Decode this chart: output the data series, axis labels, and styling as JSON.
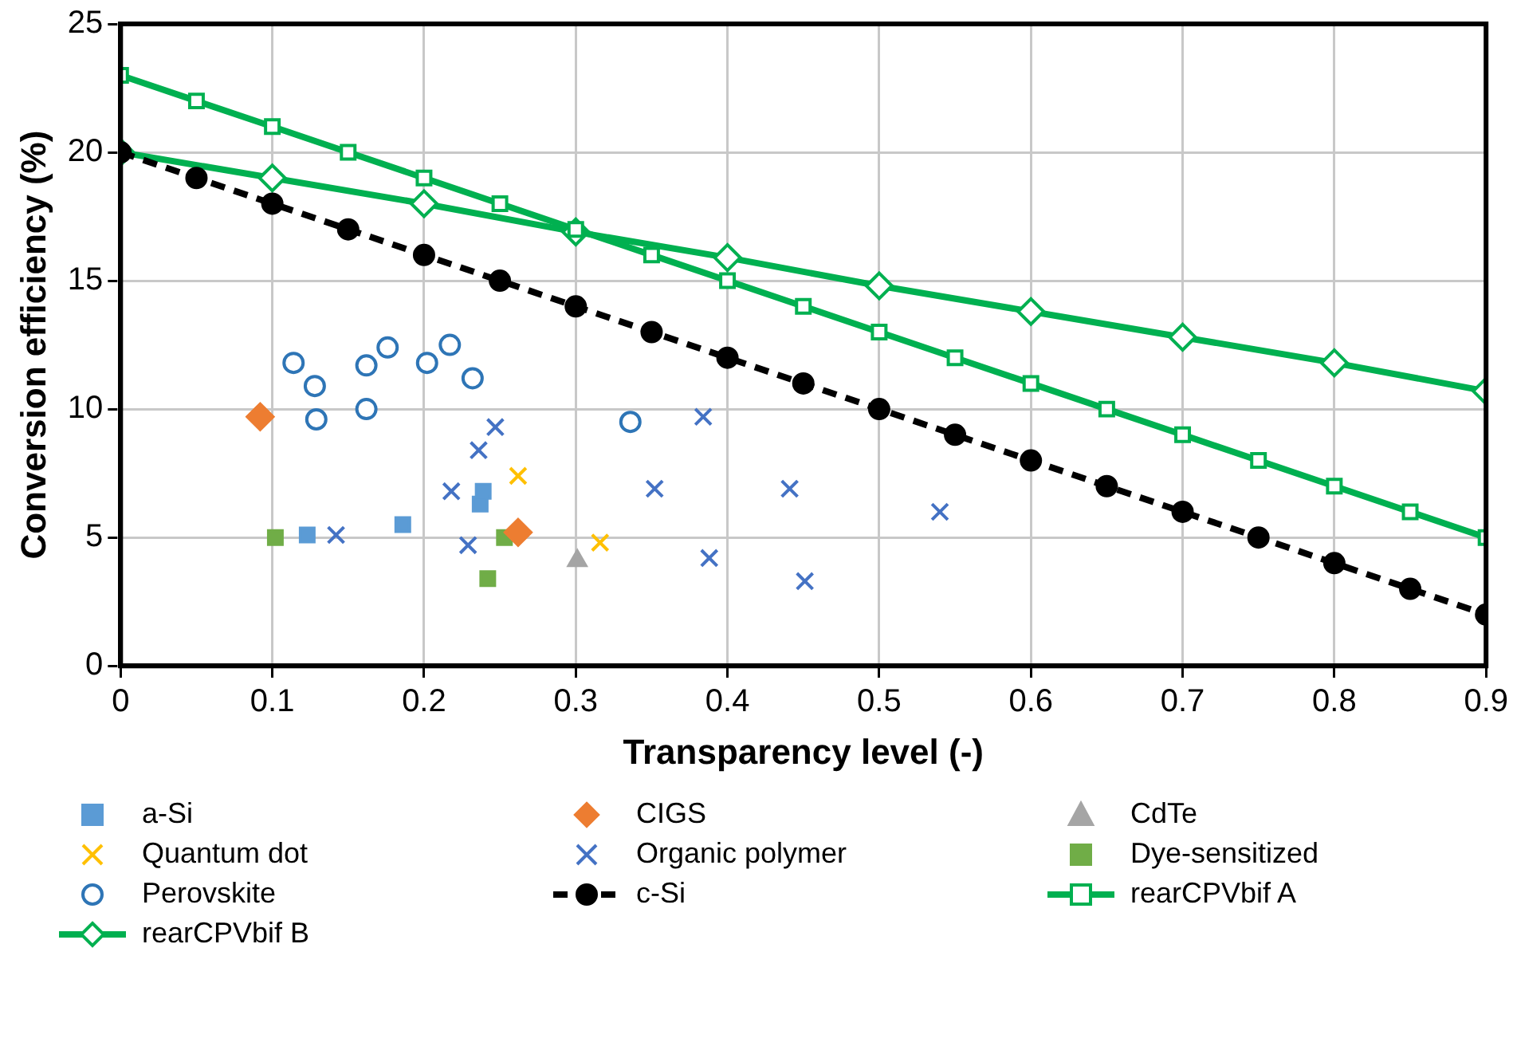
{
  "chart_data": {
    "type": "scatter",
    "xlabel": "Transparency level (-)",
    "ylabel": "Conversion efficiency (%)",
    "xlim": [
      0,
      0.9
    ],
    "xticks": [
      0,
      0.1,
      0.2,
      0.3,
      0.4,
      0.5,
      0.6,
      0.7,
      0.8,
      0.9
    ],
    "ylim": [
      0,
      25
    ],
    "yticks": [
      0,
      5,
      10,
      15,
      20,
      25
    ],
    "grid": true,
    "legend": "bottom",
    "series": [
      {
        "name": "a-Si",
        "type": "scatter",
        "marker": "square",
        "color": "#5b9bd5",
        "x": [
          0.123,
          0.186,
          0.239,
          0.237
        ],
        "values": [
          5.1,
          5.5,
          6.8,
          6.3
        ]
      },
      {
        "name": "CIGS",
        "type": "scatter",
        "marker": "diamond",
        "color": "#ed7d31",
        "x": [
          0.092,
          0.262
        ],
        "values": [
          9.7,
          5.2
        ]
      },
      {
        "name": "CdTe",
        "type": "scatter",
        "marker": "triangle",
        "color": "#a5a5a5",
        "x": [
          0.301
        ],
        "values": [
          4.1
        ]
      },
      {
        "name": "Quantum dot",
        "type": "scatter",
        "marker": "cross",
        "color": "#ffc000",
        "x": [
          0.262,
          0.316
        ],
        "values": [
          7.4,
          4.8
        ]
      },
      {
        "name": "Organic polymer",
        "type": "scatter",
        "marker": "cross",
        "color": "#4472c4",
        "x": [
          0.142,
          0.218,
          0.229,
          0.236,
          0.247,
          0.384,
          0.352,
          0.388,
          0.441,
          0.451,
          0.54
        ],
        "values": [
          5.1,
          6.8,
          4.7,
          8.4,
          9.3,
          9.7,
          6.9,
          4.2,
          6.9,
          3.3,
          6.0
        ]
      },
      {
        "name": "Dye-sensitized",
        "type": "scatter",
        "marker": "square",
        "color": "#70ad47",
        "x": [
          0.102,
          0.253,
          0.242
        ],
        "values": [
          5.0,
          5.0,
          3.4
        ]
      },
      {
        "name": "Perovskite",
        "type": "scatter",
        "marker": "circle",
        "color": "#2e75b6",
        "x": [
          0.114,
          0.128,
          0.129,
          0.162,
          0.162,
          0.176,
          0.202,
          0.217,
          0.232,
          0.336
        ],
        "values": [
          11.8,
          10.9,
          9.6,
          11.7,
          10.0,
          12.4,
          11.8,
          12.5,
          11.2,
          9.5
        ]
      },
      {
        "name": "c-Si",
        "type": "line",
        "marker": "circle",
        "line_style": "dashed",
        "color": "#000000",
        "x": [
          0,
          0.05,
          0.1,
          0.15,
          0.2,
          0.25,
          0.3,
          0.35,
          0.4,
          0.45,
          0.5,
          0.55,
          0.6,
          0.65,
          0.7,
          0.75,
          0.8,
          0.85,
          0.9
        ],
        "values": [
          20,
          19,
          18,
          17,
          16,
          15,
          14,
          13,
          12,
          11,
          10,
          9,
          8,
          7,
          6,
          5,
          4,
          3,
          2
        ]
      },
      {
        "name": "rearCPVbif A",
        "type": "line",
        "marker": "square",
        "line_style": "solid",
        "color": "#00b050",
        "x": [
          0,
          0.05,
          0.1,
          0.15,
          0.2,
          0.25,
          0.3,
          0.35,
          0.4,
          0.45,
          0.5,
          0.55,
          0.6,
          0.65,
          0.7,
          0.75,
          0.8,
          0.85,
          0.9
        ],
        "values": [
          23,
          22,
          21,
          20,
          19,
          18,
          17,
          16,
          15,
          14,
          13,
          12,
          11,
          10,
          9,
          8,
          7,
          6,
          5
        ]
      },
      {
        "name": "rearCPVbif B",
        "type": "line",
        "marker": "diamond",
        "line_style": "solid",
        "color": "#00b050",
        "x": [
          0,
          0.1,
          0.2,
          0.3,
          0.4,
          0.5,
          0.6,
          0.7,
          0.8,
          0.9
        ],
        "values": [
          20,
          19,
          18,
          16.9,
          15.9,
          14.8,
          13.8,
          12.8,
          11.8,
          10.7
        ]
      }
    ]
  }
}
